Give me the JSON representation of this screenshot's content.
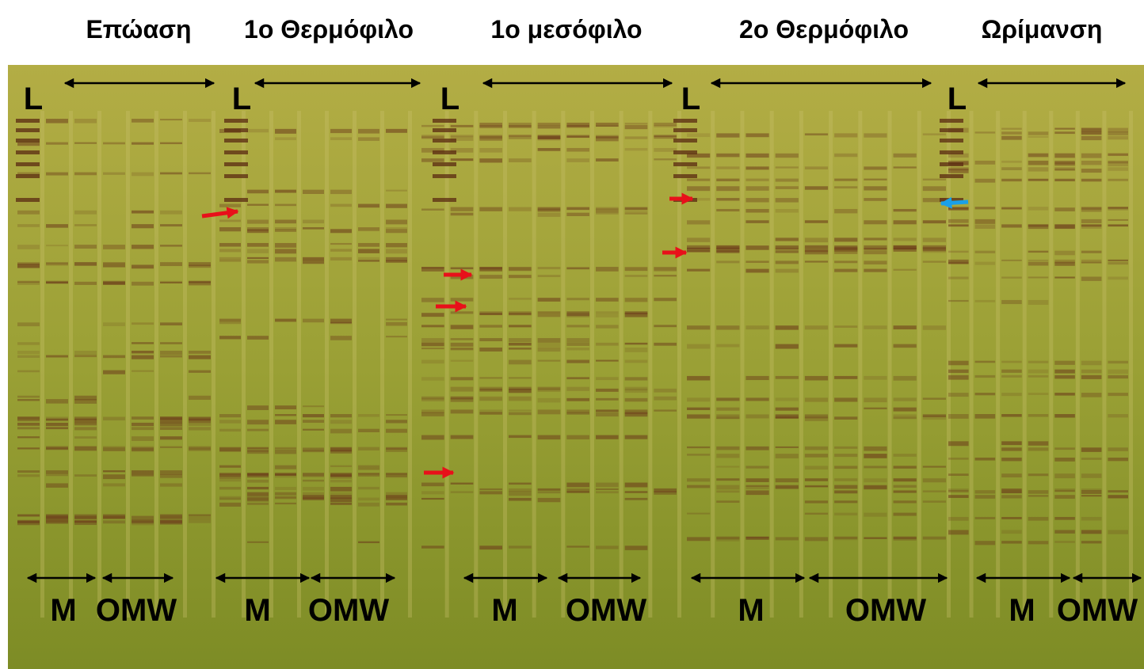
{
  "sections": [
    {
      "title": "Επώαση",
      "ladder": "L",
      "groups": [
        "M",
        "OMW"
      ]
    },
    {
      "title": "1ο Θερμόφιλο",
      "ladder": "L",
      "groups": [
        "M",
        "OMW"
      ]
    },
    {
      "title": "1ο μεσόφιλο",
      "ladder": "L",
      "groups": [
        "M",
        "OMW"
      ]
    },
    {
      "title": "2ο Θερμόφιλο",
      "ladder": "L",
      "groups": [
        "M",
        "OMW"
      ]
    },
    {
      "title": "Ωρίμανση",
      "ladder": "L",
      "groups": [
        "M",
        "OMW"
      ]
    }
  ]
}
